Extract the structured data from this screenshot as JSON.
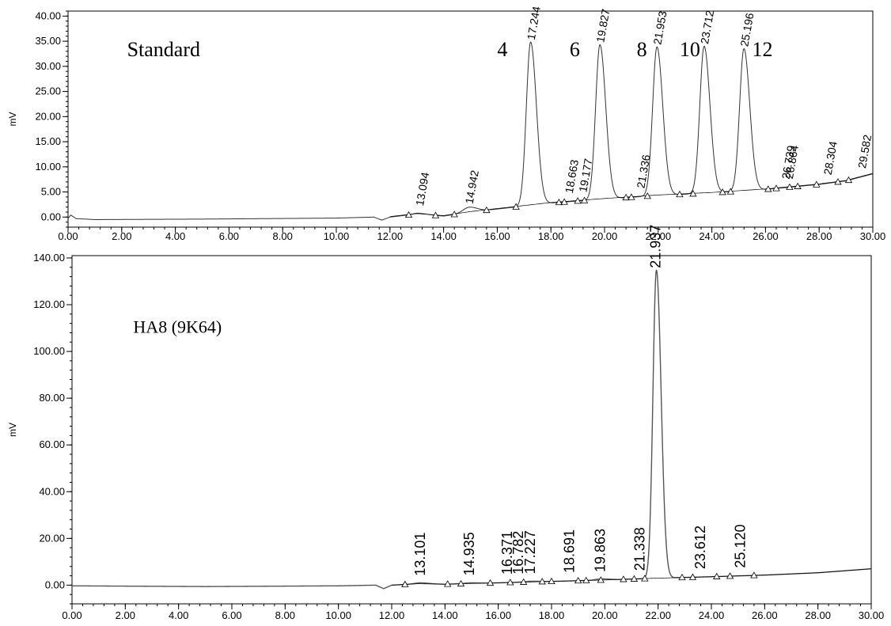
{
  "chart_data": [
    {
      "type": "line",
      "title": "Standard",
      "xlabel": "",
      "ylabel": "mV",
      "xlim": [
        0,
        30
      ],
      "ylim": [
        -2,
        41
      ],
      "x_ticks": [
        "0.00",
        "2.00",
        "4.00",
        "6.00",
        "8.00",
        "10.00",
        "12.00",
        "14.00",
        "16.00",
        "18.00",
        "20.00",
        "22.00",
        "24.00",
        "26.00",
        "28.00",
        "30.00"
      ],
      "y_ticks": [
        "0.00",
        "5.00",
        "10.00",
        "15.00",
        "20.00",
        "25.00",
        "30.00",
        "35.00",
        "40.00"
      ],
      "grid": false,
      "baseline": [
        [
          0,
          -0.3
        ],
        [
          0.1,
          0.4
        ],
        [
          0.3,
          -0.3
        ],
        [
          1,
          -0.5
        ],
        [
          5,
          -0.4
        ],
        [
          10,
          -0.2
        ],
        [
          11.4,
          0.0
        ],
        [
          11.7,
          -0.6
        ],
        [
          12,
          0.0
        ],
        [
          13,
          0.6
        ],
        [
          14,
          0.2
        ],
        [
          15,
          1.0
        ],
        [
          16,
          1.6
        ],
        [
          18,
          2.8
        ],
        [
          20,
          3.6
        ],
        [
          22,
          4.3
        ],
        [
          24,
          4.8
        ],
        [
          26,
          5.5
        ],
        [
          28,
          6.5
        ],
        [
          29,
          7.2
        ],
        [
          30,
          8.6
        ]
      ],
      "series": [
        {
          "peaks": [
            {
              "label": "13.094",
              "x": 13.094,
              "height": 0.2
            },
            {
              "label": "14.942",
              "x": 14.942,
              "height": 1.0
            },
            {
              "label": "17.244",
              "x": 17.244,
              "height": 32.5
            },
            {
              "label": "18.663",
              "x": 18.663,
              "height": 0.0
            },
            {
              "label": "19.177",
              "x": 19.177,
              "height": 0.0
            },
            {
              "label": "19.827",
              "x": 19.827,
              "height": 30.8
            },
            {
              "label": "21.336",
              "x": 21.336,
              "height": 0.0
            },
            {
              "label": "21.953",
              "x": 21.953,
              "height": 29.6
            },
            {
              "label": "23.712",
              "x": 23.712,
              "height": 29.3
            },
            {
              "label": "25.196",
              "x": 25.196,
              "height": 28.3
            },
            {
              "label": "26.739",
              "x": 26.739,
              "height": 0.0
            },
            {
              "label": "26.864",
              "x": 26.864,
              "height": 0.0
            },
            {
              "label": "28.304",
              "x": 28.304,
              "height": 0.0
            },
            {
              "label": "29.582",
              "x": 29.582,
              "height": 0.0
            }
          ]
        }
      ],
      "annotations": [
        {
          "text": "Standard",
          "x": 2.2,
          "y": 32.0
        },
        {
          "text": "4",
          "x": 16.0,
          "y": 32.0
        },
        {
          "text": "6",
          "x": 18.7,
          "y": 32.0
        },
        {
          "text": "8",
          "x": 21.2,
          "y": 32.0
        },
        {
          "text": "10",
          "x": 22.8,
          "y": 32.0
        },
        {
          "text": "12",
          "x": 25.5,
          "y": 32.0
        }
      ],
      "markers": [
        12.7,
        13.7,
        14.4,
        15.6,
        16.7,
        18.3,
        18.5,
        19.0,
        19.25,
        20.8,
        21.0,
        21.6,
        22.8,
        23.3,
        24.4,
        24.7,
        26.1,
        26.4,
        26.9,
        27.2,
        27.9,
        28.7,
        29.1
      ]
    },
    {
      "type": "line",
      "title": "HA8 (9K64)",
      "xlabel": "",
      "ylabel": "mV",
      "xlim": [
        0,
        30
      ],
      "ylim": [
        -8,
        141
      ],
      "x_ticks": [
        "0.00",
        "2.00",
        "4.00",
        "6.00",
        "8.00",
        "10.00",
        "12.00",
        "14.00",
        "16.00",
        "18.00",
        "20.00",
        "22.00",
        "24.00",
        "26.00",
        "28.00",
        "30.00"
      ],
      "y_ticks": [
        "0.00",
        "20.00",
        "40.00",
        "60.00",
        "80.00",
        "100.00",
        "120.00",
        "140.00"
      ],
      "grid": false,
      "baseline": [
        [
          0,
          -0.3
        ],
        [
          5,
          -0.6
        ],
        [
          10,
          -0.3
        ],
        [
          11.4,
          0.0
        ],
        [
          11.7,
          -1.5
        ],
        [
          12,
          0.0
        ],
        [
          13,
          0.6
        ],
        [
          14,
          0.4
        ],
        [
          16,
          1.0
        ],
        [
          18,
          1.6
        ],
        [
          20,
          2.2
        ],
        [
          22,
          3.0
        ],
        [
          24,
          3.6
        ],
        [
          26,
          4.3
        ],
        [
          28,
          5.3
        ],
        [
          30,
          7.0
        ]
      ],
      "series": [
        {
          "peaks": [
            {
              "label": "13.101",
              "x": 13.101,
              "height": 0.4
            },
            {
              "label": "14.935",
              "x": 14.935,
              "height": 0.3
            },
            {
              "label": "16.371",
              "x": 16.371,
              "height": 0.0
            },
            {
              "label": "16.782",
              "x": 16.782,
              "height": 0.0
            },
            {
              "label": "17.227",
              "x": 17.227,
              "height": 0.3
            },
            {
              "label": "18.691",
              "x": 18.691,
              "height": 0.0
            },
            {
              "label": "19.863",
              "x": 19.863,
              "height": 0.5
            },
            {
              "label": "21.338",
              "x": 21.338,
              "height": 0.0
            },
            {
              "label": "21.937",
              "x": 21.937,
              "height": 132.0
            },
            {
              "label": "23.612",
              "x": 23.612,
              "height": 0.0
            },
            {
              "label": "25.120",
              "x": 25.12,
              "height": 0.0
            }
          ]
        }
      ],
      "annotations": [
        {
          "text": "HA8 (9K64)",
          "x": 2.3,
          "y": 108.0
        }
      ],
      "markers": [
        12.5,
        14.1,
        14.6,
        15.7,
        16.45,
        16.95,
        17.65,
        18.0,
        19.0,
        19.3,
        19.85,
        20.7,
        21.1,
        21.5,
        22.9,
        23.3,
        24.2,
        24.7,
        25.6
      ]
    }
  ]
}
